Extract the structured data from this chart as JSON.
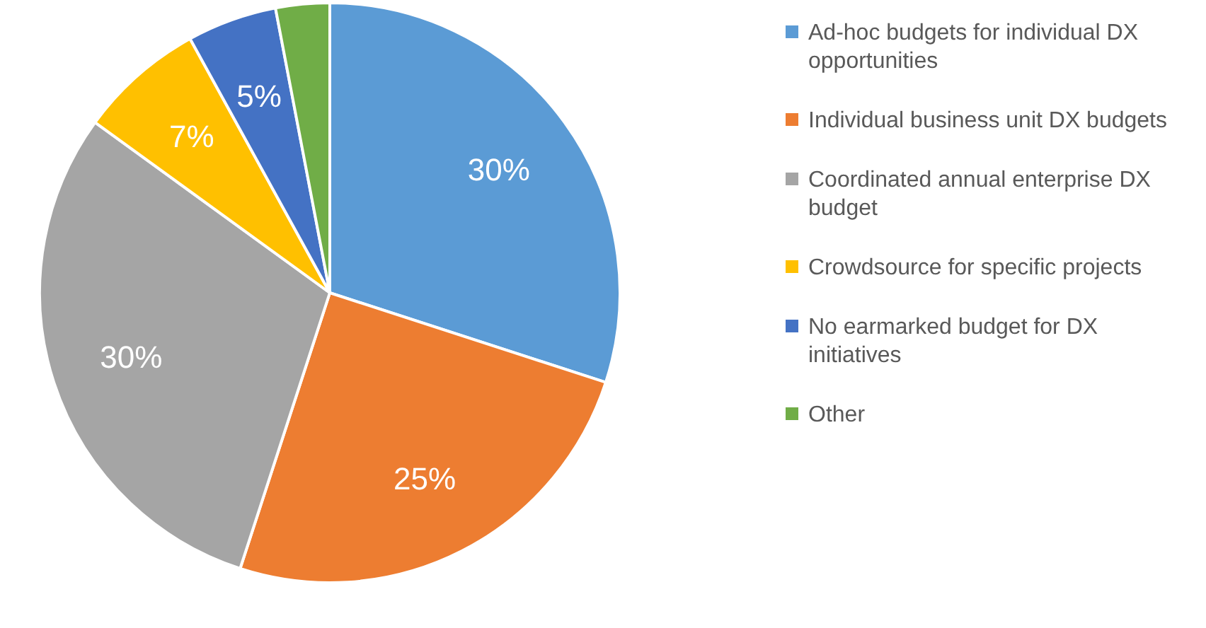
{
  "chart_data": {
    "type": "pie",
    "categories": [
      "Ad-hoc budgets for individual DX opportunities",
      "Individual business unit DX budgets",
      "Coordinated annual enterprise DX budget",
      "Crowdsource for specific projects",
      "No earmarked budget for DX initiatives",
      "Other"
    ],
    "values": [
      30,
      25,
      30,
      7,
      5,
      3
    ],
    "value_labels": [
      "30%",
      "25%",
      "30%",
      "7%",
      "5%",
      null
    ],
    "colors": [
      "#5b9bd5",
      "#ed7d31",
      "#a5a5a5",
      "#ffc000",
      "#4472c4",
      "#70ad47"
    ],
    "legend": "right"
  }
}
